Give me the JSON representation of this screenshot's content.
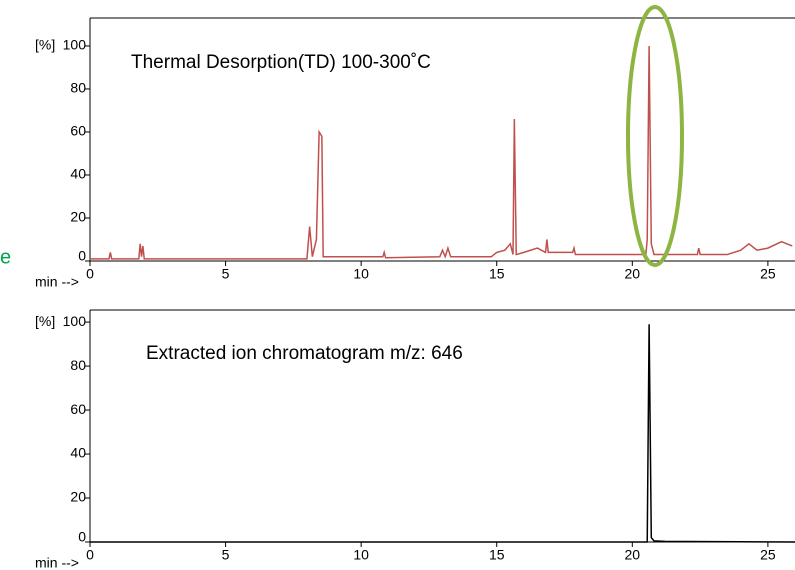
{
  "cropped_text": "e",
  "chart_data": [
    {
      "type": "line",
      "annotation": "Thermal Desorption(TD) 100-300˚C",
      "y_label": "[%]",
      "x_label": "min -->",
      "color": "#c0504d",
      "x": [
        0,
        0.7,
        0.75,
        0.8,
        1.8,
        1.85,
        1.9,
        1.95,
        2.0,
        4,
        8.0,
        8.1,
        8.2,
        8.35,
        8.45,
        8.55,
        8.6,
        10.8,
        10.85,
        10.9,
        12.9,
        13,
        13.1,
        13.2,
        13.3,
        14.8,
        15,
        15.3,
        15.5,
        15.6,
        15.65,
        15.72,
        16,
        16.5,
        16.8,
        16.85,
        16.9,
        17.8,
        17.85,
        17.9,
        20.5,
        20.55,
        20.62,
        20.7,
        20.8,
        22.4,
        22.45,
        22.5,
        23.5,
        24,
        24.3,
        24.6,
        25,
        25.5,
        25.9
      ],
      "values": [
        1,
        1,
        4,
        1,
        1,
        8,
        2,
        7,
        1,
        1,
        1,
        16,
        2,
        10,
        60,
        58,
        2,
        2,
        4,
        1.5,
        2,
        5,
        2,
        6,
        2,
        2,
        4,
        5,
        8,
        3,
        66,
        3,
        4,
        6,
        4,
        10,
        4,
        4,
        6,
        3,
        3,
        10,
        100,
        8,
        3,
        3,
        6,
        3,
        3,
        5,
        8,
        5,
        6,
        9,
        7
      ],
      "xlim": [
        0,
        26
      ],
      "ylim": [
        0,
        113
      ],
      "xticks": [
        0,
        5,
        10,
        15,
        20,
        25
      ],
      "yticks": [
        0,
        20,
        40,
        60,
        80,
        100
      ]
    },
    {
      "type": "line",
      "annotation": "Extracted ion chromatogram m/z: 646",
      "y_label": "[%]",
      "x_label": "min -->",
      "color": "#000000",
      "x": [
        0,
        20.55,
        20.62,
        20.7,
        20.8,
        21.2,
        26
      ],
      "values": [
        0,
        0,
        99,
        2,
        0.5,
        0.3,
        0
      ],
      "xlim": [
        0,
        26
      ],
      "ylim": [
        0,
        105.5
      ],
      "xticks": [
        0,
        5,
        10,
        15,
        20,
        25
      ],
      "yticks": [
        0,
        20,
        40,
        60,
        80,
        100
      ]
    }
  ]
}
